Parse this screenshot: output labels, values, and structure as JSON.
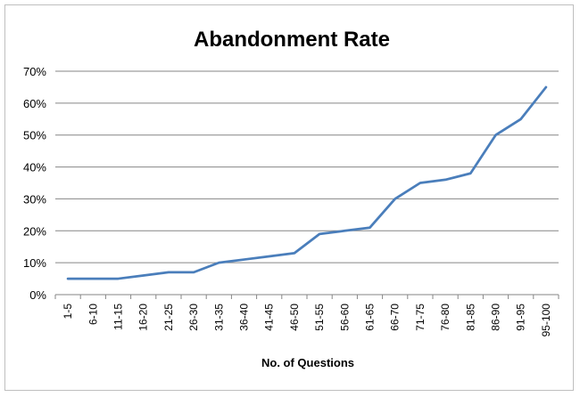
{
  "chart_data": {
    "type": "line",
    "title": "Abandonment Rate",
    "xlabel": "No. of Questions",
    "ylabel": "",
    "ylim": [
      0,
      70
    ],
    "yticks": [
      "0%",
      "10%",
      "20%",
      "30%",
      "40%",
      "50%",
      "60%",
      "70%"
    ],
    "ytick_values": [
      0,
      10,
      20,
      30,
      40,
      50,
      60,
      70
    ],
    "grid": true,
    "legend": "none",
    "categories": [
      "1-5",
      "6-10",
      "11-15",
      "16-20",
      "21-25",
      "26-30",
      "31-35",
      "36-40",
      "41-45",
      "46-50",
      "51-55",
      "56-60",
      "61-65",
      "66-70",
      "71-75",
      "76-80",
      "81-85",
      "86-90",
      "91-95",
      "95-100"
    ],
    "series": [
      {
        "values": [
          5,
          5,
          5,
          6,
          7,
          7,
          10,
          11,
          12,
          13,
          19,
          20,
          21,
          30,
          35,
          36,
          38,
          50,
          55,
          65
        ]
      }
    ],
    "colors": {
      "line": "#4a7ebb",
      "grid": "#868686"
    }
  }
}
